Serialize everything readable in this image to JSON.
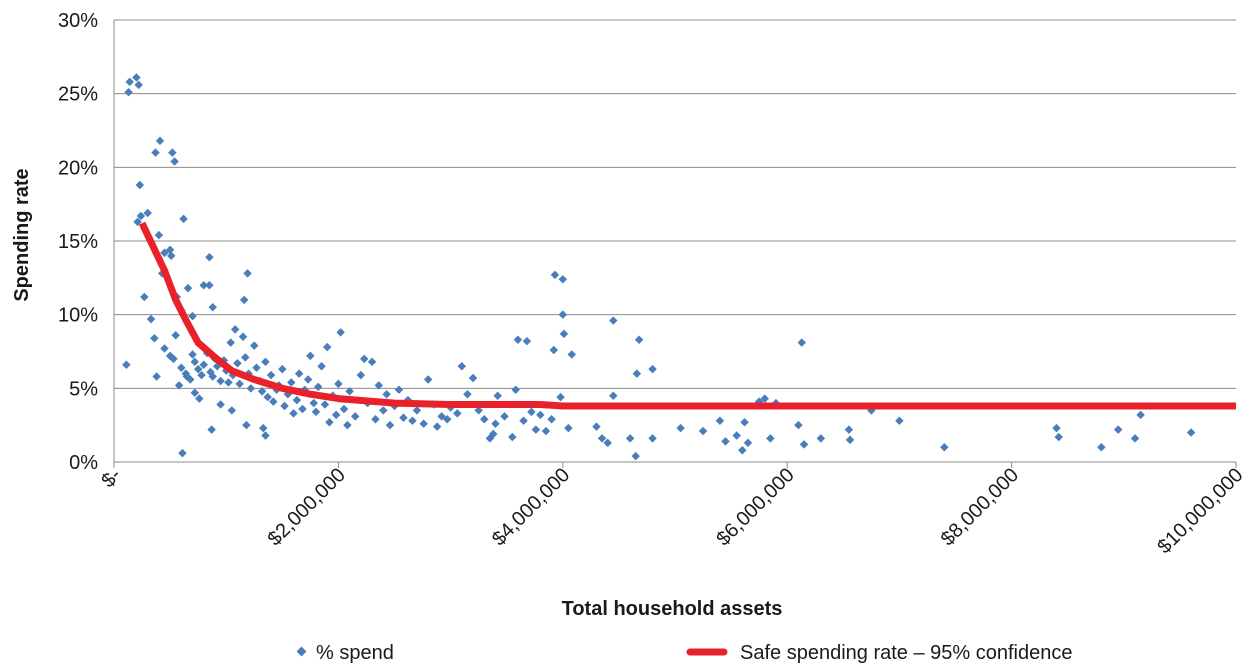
{
  "chart_data": {
    "type": "scatter",
    "title": "",
    "xlabel": "Total household assets",
    "ylabel": "Spending rate",
    "xlim": [
      0,
      10000000
    ],
    "ylim": [
      0,
      30
    ],
    "grid": "horizontal",
    "legend_position": "bottom",
    "x_ticks": [
      0,
      2000000,
      4000000,
      6000000,
      8000000,
      10000000
    ],
    "x_tick_labels": [
      "$-",
      "$2,000,000",
      "$4,000,000",
      "$6,000,000",
      "$8,000,000",
      "$10,000,000"
    ],
    "y_ticks": [
      0,
      5,
      10,
      15,
      20,
      25,
      30
    ],
    "y_tick_labels": [
      "0%",
      "5%",
      "10%",
      "15%",
      "20%",
      "25%",
      "30%"
    ],
    "series": [
      {
        "name": "% spend",
        "kind": "scatter",
        "color": "#4a7ebb",
        "points": [
          [
            130000,
            25.1
          ],
          [
            140000,
            25.8
          ],
          [
            200000,
            26.1
          ],
          [
            220000,
            25.6
          ],
          [
            230000,
            18.8
          ],
          [
            210000,
            16.3
          ],
          [
            240000,
            16.7
          ],
          [
            300000,
            16.9
          ],
          [
            270000,
            11.2
          ],
          [
            330000,
            9.7
          ],
          [
            370000,
            21.0
          ],
          [
            410000,
            21.8
          ],
          [
            520000,
            21.0
          ],
          [
            540000,
            20.4
          ],
          [
            400000,
            15.4
          ],
          [
            620000,
            16.5
          ],
          [
            450000,
            14.2
          ],
          [
            430000,
            12.8
          ],
          [
            500000,
            14.4
          ],
          [
            510000,
            14.0
          ],
          [
            560000,
            11.2
          ],
          [
            600000,
            10.3
          ],
          [
            660000,
            11.8
          ],
          [
            700000,
            9.9
          ],
          [
            850000,
            13.9
          ],
          [
            800000,
            12.0
          ],
          [
            850000,
            12.0
          ],
          [
            1190000,
            12.8
          ],
          [
            1160000,
            11.0
          ],
          [
            880000,
            10.5
          ],
          [
            360000,
            8.4
          ],
          [
            380000,
            5.8
          ],
          [
            110000,
            6.6
          ],
          [
            450000,
            7.7
          ],
          [
            500000,
            7.2
          ],
          [
            530000,
            7.0
          ],
          [
            550000,
            8.6
          ],
          [
            600000,
            6.4
          ],
          [
            640000,
            6.0
          ],
          [
            680000,
            5.6
          ],
          [
            700000,
            7.3
          ],
          [
            720000,
            6.8
          ],
          [
            750000,
            6.3
          ],
          [
            780000,
            5.9
          ],
          [
            800000,
            6.6
          ],
          [
            830000,
            7.4
          ],
          [
            860000,
            6.1
          ],
          [
            880000,
            5.8
          ],
          [
            900000,
            7.0
          ],
          [
            920000,
            6.5
          ],
          [
            950000,
            5.5
          ],
          [
            980000,
            6.9
          ],
          [
            1000000,
            6.2
          ],
          [
            1020000,
            5.4
          ],
          [
            1040000,
            8.1
          ],
          [
            1060000,
            5.9
          ],
          [
            1080000,
            9.0
          ],
          [
            1100000,
            6.7
          ],
          [
            1120000,
            5.3
          ],
          [
            1150000,
            8.5
          ],
          [
            1170000,
            7.1
          ],
          [
            1200000,
            6.0
          ],
          [
            1220000,
            5.0
          ],
          [
            1250000,
            7.9
          ],
          [
            1270000,
            6.4
          ],
          [
            1300000,
            5.5
          ],
          [
            1320000,
            4.8
          ],
          [
            1350000,
            6.8
          ],
          [
            1370000,
            4.4
          ],
          [
            1400000,
            5.9
          ],
          [
            1420000,
            4.1
          ],
          [
            1450000,
            4.9
          ],
          [
            1470000,
            5.2
          ],
          [
            1500000,
            6.3
          ],
          [
            1520000,
            3.8
          ],
          [
            1550000,
            4.6
          ],
          [
            1580000,
            5.4
          ],
          [
            1600000,
            3.3
          ],
          [
            1630000,
            4.2
          ],
          [
            1650000,
            6.0
          ],
          [
            1680000,
            3.6
          ],
          [
            1700000,
            4.9
          ],
          [
            1730000,
            5.6
          ],
          [
            1750000,
            7.2
          ],
          [
            1780000,
            4.0
          ],
          [
            1800000,
            3.4
          ],
          [
            1820000,
            5.1
          ],
          [
            1850000,
            6.5
          ],
          [
            1880000,
            3.9
          ],
          [
            1900000,
            7.8
          ],
          [
            1920000,
            2.7
          ],
          [
            1950000,
            4.5
          ],
          [
            1980000,
            3.2
          ],
          [
            2000000,
            5.3
          ],
          [
            2020000,
            8.8
          ],
          [
            2050000,
            3.6
          ],
          [
            2080000,
            2.5
          ],
          [
            2100000,
            4.8
          ],
          [
            2150000,
            3.1
          ],
          [
            2200000,
            5.9
          ],
          [
            2230000,
            7.0
          ],
          [
            2260000,
            4.0
          ],
          [
            2300000,
            6.8
          ],
          [
            2330000,
            2.9
          ],
          [
            2360000,
            5.2
          ],
          [
            2400000,
            3.5
          ],
          [
            2430000,
            4.6
          ],
          [
            2460000,
            2.5
          ],
          [
            2500000,
            3.8
          ],
          [
            2540000,
            4.9
          ],
          [
            2580000,
            3.0
          ],
          [
            2620000,
            4.2
          ],
          [
            2660000,
            2.8
          ],
          [
            2700000,
            3.5
          ],
          [
            2760000,
            2.6
          ],
          [
            2800000,
            5.6
          ],
          [
            2850000,
            3.9
          ],
          [
            2880000,
            2.4
          ],
          [
            2920000,
            3.1
          ],
          [
            2970000,
            2.9
          ],
          [
            3000000,
            3.7
          ],
          [
            3060000,
            3.3
          ],
          [
            3100000,
            6.5
          ],
          [
            3150000,
            4.6
          ],
          [
            3200000,
            5.7
          ],
          [
            3250000,
            3.5
          ],
          [
            3300000,
            2.9
          ],
          [
            3350000,
            1.6
          ],
          [
            3380000,
            1.9
          ],
          [
            3400000,
            2.6
          ],
          [
            3420000,
            4.5
          ],
          [
            3480000,
            3.1
          ],
          [
            3550000,
            1.7
          ],
          [
            3600000,
            8.3
          ],
          [
            3680000,
            8.2
          ],
          [
            3580000,
            4.9
          ],
          [
            3650000,
            2.8
          ],
          [
            3720000,
            3.4
          ],
          [
            3760000,
            2.2
          ],
          [
            3800000,
            3.2
          ],
          [
            3850000,
            2.1
          ],
          [
            3900000,
            2.9
          ],
          [
            3920000,
            7.6
          ],
          [
            3930000,
            12.7
          ],
          [
            4000000,
            12.4
          ],
          [
            4000000,
            10.0
          ],
          [
            4010000,
            8.7
          ],
          [
            4080000,
            7.3
          ],
          [
            3980000,
            4.4
          ],
          [
            4050000,
            2.3
          ],
          [
            4300000,
            2.4
          ],
          [
            4350000,
            1.6
          ],
          [
            4400000,
            1.3
          ],
          [
            4450000,
            9.6
          ],
          [
            4450000,
            4.5
          ],
          [
            4600000,
            1.6
          ],
          [
            4650000,
            0.4
          ],
          [
            4660000,
            6.0
          ],
          [
            4680000,
            8.3
          ],
          [
            4800000,
            6.3
          ],
          [
            4800000,
            1.6
          ],
          [
            5050000,
            2.3
          ],
          [
            5250000,
            2.1
          ],
          [
            5400000,
            2.8
          ],
          [
            5450000,
            1.4
          ],
          [
            5550000,
            1.8
          ],
          [
            5600000,
            0.8
          ],
          [
            5620000,
            2.7
          ],
          [
            5650000,
            1.3
          ],
          [
            5750000,
            4.1
          ],
          [
            5800000,
            4.3
          ],
          [
            5850000,
            1.6
          ],
          [
            5900000,
            4.0
          ],
          [
            6100000,
            2.5
          ],
          [
            6130000,
            8.1
          ],
          [
            6150000,
            1.2
          ],
          [
            6300000,
            1.6
          ],
          [
            6550000,
            2.2
          ],
          [
            6560000,
            1.5
          ],
          [
            6750000,
            3.5
          ],
          [
            7000000,
            2.8
          ],
          [
            7400000,
            1.0
          ],
          [
            8400000,
            2.3
          ],
          [
            8420000,
            1.7
          ],
          [
            8800000,
            1.0
          ],
          [
            8950000,
            2.2
          ],
          [
            9100000,
            1.6
          ],
          [
            9150000,
            3.2
          ],
          [
            9600000,
            2.0
          ],
          [
            610000,
            0.6
          ],
          [
            870000,
            2.2
          ],
          [
            1350000,
            1.8
          ],
          [
            1330000,
            2.3
          ],
          [
            1180000,
            2.5
          ],
          [
            1050000,
            3.5
          ],
          [
            950000,
            3.9
          ],
          [
            760000,
            4.3
          ],
          [
            720000,
            4.7
          ],
          [
            650000,
            5.8
          ],
          [
            580000,
            5.2
          ]
        ]
      },
      {
        "name": "Safe spending rate – 95% confidence",
        "kind": "line",
        "color": "#e8212b",
        "points": [
          [
            250000,
            16.2
          ],
          [
            350000,
            14.6
          ],
          [
            450000,
            13.0
          ],
          [
            550000,
            11.0
          ],
          [
            650000,
            9.5
          ],
          [
            750000,
            8.1
          ],
          [
            900000,
            7.1
          ],
          [
            1050000,
            6.2
          ],
          [
            1250000,
            5.6
          ],
          [
            1500000,
            5.0
          ],
          [
            1750000,
            4.6
          ],
          [
            2000000,
            4.3
          ],
          [
            2500000,
            4.0
          ],
          [
            3000000,
            3.9
          ],
          [
            3800000,
            3.9
          ],
          [
            4000000,
            3.8
          ],
          [
            6000000,
            3.8
          ],
          [
            8000000,
            3.8
          ],
          [
            10000000,
            3.8
          ]
        ]
      }
    ]
  }
}
